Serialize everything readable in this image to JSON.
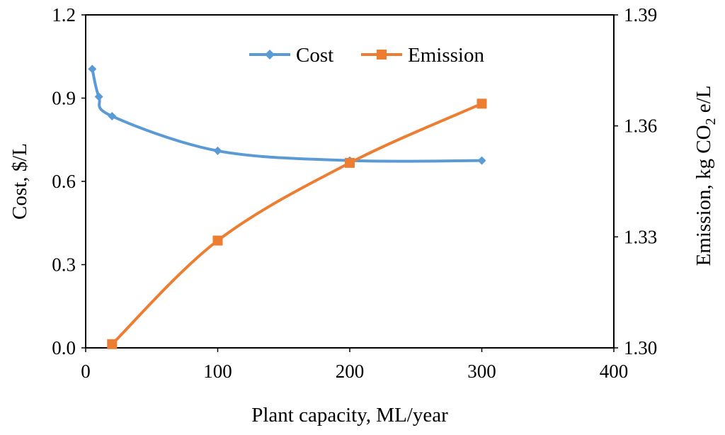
{
  "chart_data": {
    "type": "line",
    "title": "",
    "xlabel": "Plant capacity, ML/year",
    "ylabel": "Cost, $/L",
    "y2label": {
      "prefix": "Emission, kg CO",
      "subscript": "2",
      "suffix": " e/L"
    },
    "xlim": [
      0,
      400
    ],
    "ylim": [
      0,
      1.2
    ],
    "y2lim": [
      1.3,
      1.39
    ],
    "x_ticks": [
      "0",
      "100",
      "200",
      "300",
      "400"
    ],
    "y_ticks": [
      "0.0",
      "0.3",
      "0.6",
      "0.9",
      "1.2"
    ],
    "y2_ticks": [
      "1.30",
      "1.33",
      "1.36",
      "1.39"
    ],
    "grid": false,
    "legend_position": "top-center",
    "series": [
      {
        "name": "Cost",
        "axis": "left",
        "color": "#5B9BD5",
        "marker": "diamond",
        "smooth": true,
        "x": [
          5,
          10,
          20,
          100,
          200,
          300
        ],
        "values": [
          1.005,
          0.905,
          0.835,
          0.71,
          0.675,
          0.675
        ]
      },
      {
        "name": "Emission",
        "axis": "right",
        "color": "#ED7D31",
        "marker": "square",
        "smooth": true,
        "x": [
          20,
          100,
          200,
          300
        ],
        "values": [
          1.301,
          1.329,
          1.35,
          1.366
        ]
      }
    ]
  }
}
